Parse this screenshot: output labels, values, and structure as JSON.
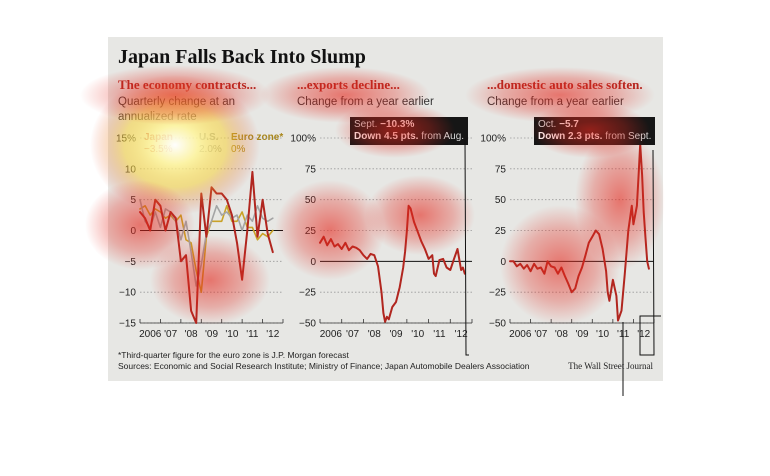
{
  "figure": {
    "title": "Japan Falls Back Into Slump",
    "footnote": "*Third-quarter figure for the euro zone is J.P. Morgan forecast",
    "sources": "Sources: Economic and Social Research Institute; Ministry of Finance; Japan Automobile Dealers Association",
    "credit": "The Wall Street Journal"
  },
  "colors": {
    "japan": "#b1261f",
    "us": "#a4a4a4",
    "euro": "#c9a227",
    "background": "#e7e7e4"
  },
  "chart_data": [
    {
      "type": "line",
      "title": "The economy contracts...",
      "subtitle": "Quarterly change at an annualized rate",
      "ylim": [
        -15,
        15
      ],
      "yticks": [
        -15,
        -10,
        -5,
        0,
        5,
        10,
        15
      ],
      "ytick_labels": [
        "−15",
        "−10",
        "−5",
        "0",
        "5",
        "10",
        "15%"
      ],
      "xlim": [
        2006,
        2013
      ],
      "xtick_labels": [
        "2006",
        "'07",
        "'08",
        "'09",
        "'10",
        "'11",
        "'12"
      ],
      "grid": true,
      "legend": [
        {
          "name": "Japan",
          "value": "−3.5%"
        },
        {
          "name": "U.S.",
          "value": "2.0%"
        },
        {
          "name": "Euro zone*",
          "value": "0%"
        }
      ],
      "series": [
        {
          "name": "Japan",
          "color": "#b1261f",
          "x": [
            2006.0,
            2006.25,
            2006.5,
            2006.75,
            2007.0,
            2007.25,
            2007.5,
            2007.75,
            2008.0,
            2008.25,
            2008.5,
            2008.75,
            2009.0,
            2009.25,
            2009.5,
            2009.75,
            2010.0,
            2010.25,
            2010.5,
            2010.75,
            2011.0,
            2011.25,
            2011.5,
            2011.75,
            2012.0,
            2012.25,
            2012.5
          ],
          "values": [
            3.0,
            2.0,
            0.0,
            5.0,
            4.0,
            0.0,
            3.0,
            2.0,
            -5.0,
            -4.0,
            -13.0,
            -15.0,
            6.0,
            -1.0,
            7.0,
            6.0,
            6.0,
            5.0,
            2.5,
            -2.0,
            -8.0,
            0.0,
            9.5,
            -1.0,
            5.0,
            -0.5,
            -3.5
          ]
        },
        {
          "name": "U.S.",
          "color": "#a4a4a4",
          "x": [
            2006.0,
            2006.25,
            2006.5,
            2006.75,
            2007.0,
            2007.25,
            2007.5,
            2007.75,
            2008.0,
            2008.25,
            2008.5,
            2008.75,
            2009.0,
            2009.25,
            2009.5,
            2009.75,
            2010.0,
            2010.25,
            2010.5,
            2010.75,
            2011.0,
            2011.25,
            2011.5,
            2011.75,
            2012.0,
            2012.25,
            2012.5
          ],
          "values": [
            5.0,
            1.5,
            0.5,
            3.0,
            0.5,
            3.5,
            3.0,
            1.5,
            -1.5,
            1.5,
            -3.5,
            -9.0,
            -5.5,
            -0.5,
            1.5,
            4.0,
            2.5,
            3.0,
            2.0,
            2.5,
            0.0,
            2.5,
            1.5,
            4.0,
            2.0,
            1.5,
            2.0
          ]
        },
        {
          "name": "Euro zone*",
          "color": "#c9a227",
          "x": [
            2006.0,
            2006.25,
            2006.5,
            2006.75,
            2007.0,
            2007.25,
            2007.5,
            2007.75,
            2008.0,
            2008.25,
            2008.5,
            2008.75,
            2009.0,
            2009.25,
            2009.5,
            2009.75,
            2010.0,
            2010.25,
            2010.5,
            2010.75,
            2011.0,
            2011.25,
            2011.5,
            2011.75,
            2012.0,
            2012.25,
            2012.5
          ],
          "values": [
            3.5,
            4.0,
            2.5,
            3.5,
            3.0,
            2.0,
            2.5,
            1.5,
            2.5,
            -1.5,
            -2.0,
            -6.5,
            -10.0,
            -1.0,
            1.5,
            1.5,
            1.5,
            4.0,
            1.5,
            1.5,
            3.0,
            0.5,
            0.5,
            -1.5,
            -0.5,
            -1.0,
            0.0
          ]
        }
      ]
    },
    {
      "type": "line",
      "title": "...exports decline...",
      "subtitle": "Change from a year earlier",
      "ylim": [
        -50,
        100
      ],
      "yticks": [
        -50,
        -25,
        0,
        25,
        50,
        75,
        100
      ],
      "ytick_labels": [
        "−50",
        "−25",
        "0",
        "25",
        "50",
        "75",
        "100%"
      ],
      "xlim": [
        2006,
        2013
      ],
      "xtick_labels": [
        "2006",
        "'07",
        "'08",
        "'09",
        "'10",
        "'11",
        "'12"
      ],
      "grid": true,
      "callout": {
        "label": "Sept.",
        "value": "−10.3%",
        "change": "Down 4.5 pts.",
        "suffix": "from Aug."
      },
      "series": [
        {
          "name": "Japan",
          "color": "#b1261f",
          "x": [
            2006.0,
            2006.17,
            2006.33,
            2006.5,
            2006.67,
            2006.83,
            2007.0,
            2007.17,
            2007.33,
            2007.5,
            2007.67,
            2007.83,
            2008.0,
            2008.17,
            2008.33,
            2008.5,
            2008.67,
            2008.83,
            2008.92,
            2009.0,
            2009.08,
            2009.17,
            2009.33,
            2009.5,
            2009.67,
            2009.83,
            2009.92,
            2010.0,
            2010.08,
            2010.17,
            2010.33,
            2010.5,
            2010.67,
            2010.83,
            2011.0,
            2011.17,
            2011.25,
            2011.33,
            2011.5,
            2011.67,
            2011.83,
            2012.0,
            2012.17,
            2012.33,
            2012.5,
            2012.58,
            2012.67
          ],
          "values": [
            15,
            20,
            13,
            18,
            12,
            14,
            10,
            15,
            9,
            12,
            11,
            9,
            5,
            2,
            6,
            5,
            -4,
            -25,
            -42,
            -49,
            -45,
            -47,
            -37,
            -33,
            -21,
            -5,
            8,
            25,
            45,
            43,
            32,
            24,
            16,
            10,
            2,
            5,
            -10,
            -12,
            1,
            2,
            -5,
            -7,
            2,
            10,
            -7,
            -5,
            -10
          ]
        }
      ]
    },
    {
      "type": "line",
      "title": "...domestic auto sales soften.",
      "subtitle": "Change from a year earlier",
      "ylim": [
        -50,
        100
      ],
      "yticks": [
        -50,
        -25,
        0,
        25,
        50,
        75,
        100
      ],
      "ytick_labels": [
        "−50",
        "−25",
        "0",
        "25",
        "50",
        "75",
        "100%"
      ],
      "xlim": [
        2006,
        2013
      ],
      "xtick_labels": [
        "2006",
        "'07",
        "'08",
        "'09",
        "'10",
        "'11",
        "'12"
      ],
      "grid": true,
      "callout": {
        "label": "Oct.",
        "value": "−5.7",
        "change": "Down 2.3 pts.",
        "suffix": "from Sept."
      },
      "series": [
        {
          "name": "Japan",
          "color": "#b1261f",
          "x": [
            2006.0,
            2006.17,
            2006.33,
            2006.5,
            2006.67,
            2006.83,
            2007.0,
            2007.17,
            2007.33,
            2007.5,
            2007.67,
            2007.83,
            2008.0,
            2008.17,
            2008.33,
            2008.5,
            2008.67,
            2008.83,
            2009.0,
            2009.17,
            2009.33,
            2009.5,
            2009.67,
            2009.83,
            2010.0,
            2010.17,
            2010.33,
            2010.5,
            2010.67,
            2010.75,
            2010.83,
            2011.0,
            2011.17,
            2011.25,
            2011.42,
            2011.58,
            2011.75,
            2011.92,
            2012.0,
            2012.17,
            2012.25,
            2012.33,
            2012.42,
            2012.5,
            2012.58,
            2012.67,
            2012.75
          ],
          "values": [
            0,
            0,
            -4,
            -2,
            -6,
            -3,
            -8,
            -2,
            -6,
            -5,
            -10,
            0,
            -4,
            -5,
            -10,
            -5,
            -12,
            -18,
            -25,
            -22,
            -12,
            -5,
            5,
            15,
            20,
            25,
            22,
            10,
            -8,
            -25,
            -32,
            -15,
            -28,
            -48,
            -40,
            -10,
            25,
            45,
            30,
            45,
            70,
            95,
            70,
            40,
            20,
            0,
            -6
          ]
        }
      ]
    }
  ]
}
